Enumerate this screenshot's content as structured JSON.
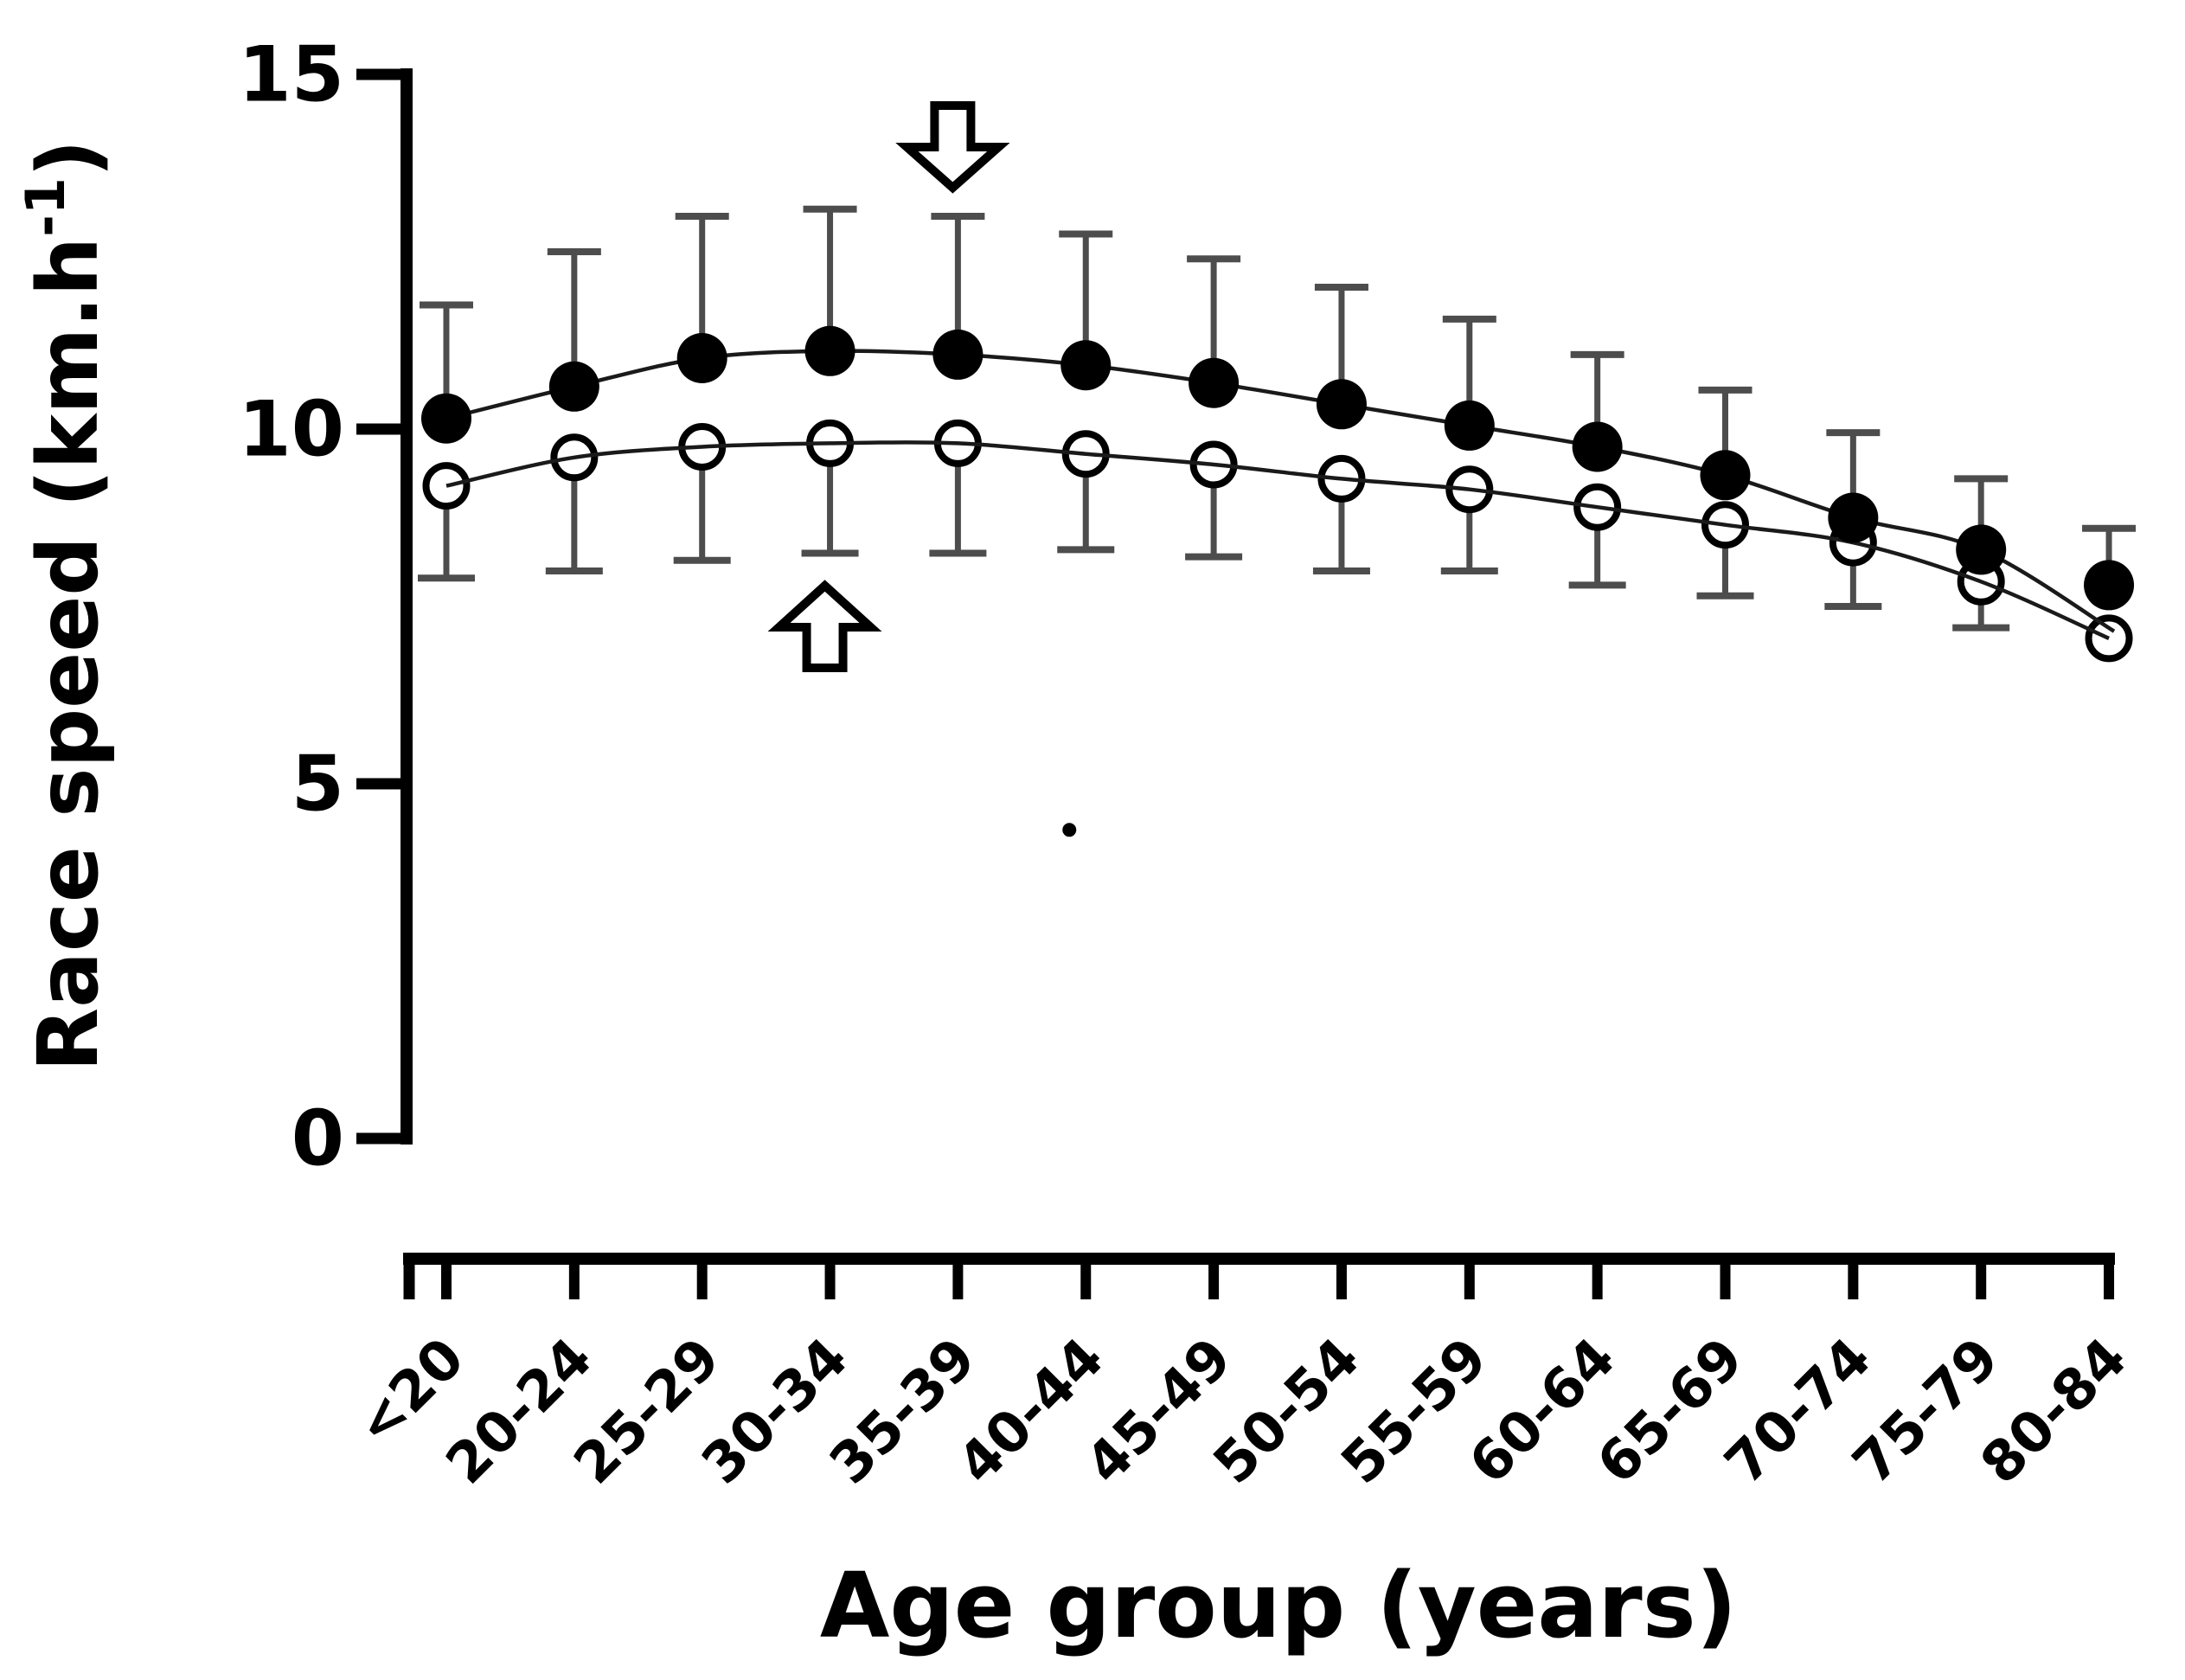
{
  "figure": {
    "background": "#ffffff",
    "ink_color": "#000000",
    "error_bar_color": "#4d4d4d",
    "curve_color": "#1a1a1a"
  },
  "chart_data": {
    "type": "line",
    "title": "",
    "xlabel": "Age group (years)",
    "ylabel": "Race speed (km.h⁻¹)",
    "ylabel_parts": {
      "prefix": "Race speed (km.h",
      "superscript": "-1",
      "suffix": ")"
    },
    "categories": [
      "<20",
      "20-24",
      "25-29",
      "30-34",
      "35-39",
      "40-44",
      "45-49",
      "50-54",
      "55-59",
      "60-64",
      "65-69",
      "70-74",
      "75-79",
      "80-84"
    ],
    "ylim": [
      0,
      15
    ],
    "yticks": [
      0,
      5,
      10,
      15
    ],
    "ytick_labels": [
      "0",
      "5",
      "10",
      "15"
    ],
    "grid": false,
    "legend": "none",
    "x_tick_label_rotation_deg": 45,
    "curve_style": "quadratic-fit, curves converge and cross at the oldest age group",
    "series": [
      {
        "name": "filled-circles",
        "marker": "filled-circle",
        "error_bars": "up",
        "values": [
          10.15,
          10.6,
          11.0,
          11.1,
          11.05,
          10.9,
          10.65,
          10.35,
          10.05,
          9.75,
          9.35,
          8.75,
          8.3,
          7.8
        ],
        "sd_up": [
          1.6,
          1.9,
          2.0,
          2.0,
          1.95,
          1.85,
          1.75,
          1.65,
          1.5,
          1.3,
          1.2,
          1.2,
          1.0,
          0.8
        ]
      },
      {
        "name": "open-circles",
        "marker": "open-circle",
        "error_bars": "down",
        "values": [
          9.2,
          9.6,
          9.75,
          9.8,
          9.8,
          9.65,
          9.5,
          9.3,
          9.15,
          8.9,
          8.65,
          8.4,
          7.85,
          7.05
        ],
        "sd_down": [
          1.3,
          1.6,
          1.6,
          1.55,
          1.55,
          1.35,
          1.3,
          1.3,
          1.15,
          1.1,
          1.0,
          0.9,
          0.65,
          0
        ]
      }
    ],
    "annotations": [
      {
        "type": "block-arrow",
        "direction": "down",
        "target_category": "35-39"
      },
      {
        "type": "block-arrow",
        "direction": "up",
        "target_category": "30-34"
      },
      {
        "type": "small-dot",
        "near_category": "40-44",
        "y_value": 4.35
      }
    ]
  }
}
